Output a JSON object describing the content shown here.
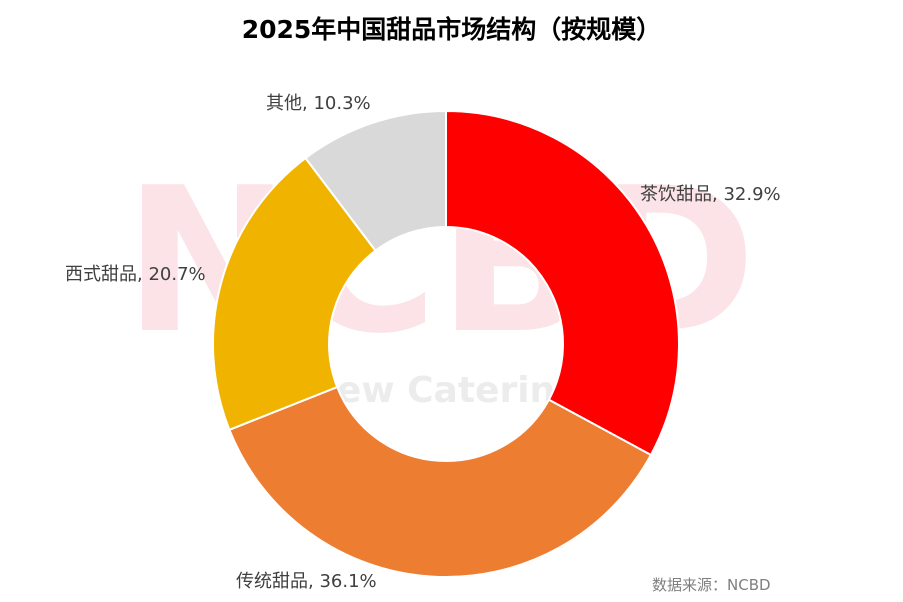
{
  "watermark": {
    "logo": "NCBD",
    "tagline": "餐 New Catering  a"
  },
  "chart_data": {
    "type": "pie",
    "title": "2025年中国甜品市场结构（按规模）",
    "donut": true,
    "categories": [
      "茶饮甜品",
      "传统甜品",
      "西式甜品",
      "其他"
    ],
    "values": [
      32.9,
      36.1,
      20.7,
      10.3
    ],
    "unit": "%",
    "labels": [
      "茶饮甜品, 32.9%",
      "传统甜品, 36.1%",
      "西式甜品, 20.7%",
      "其他, 10.3%"
    ],
    "colors": [
      "#ff0000",
      "#ed7d31",
      "#f0b400",
      "#d9d9d9"
    ],
    "legend": "none"
  },
  "source": "数据来源：NCBD"
}
